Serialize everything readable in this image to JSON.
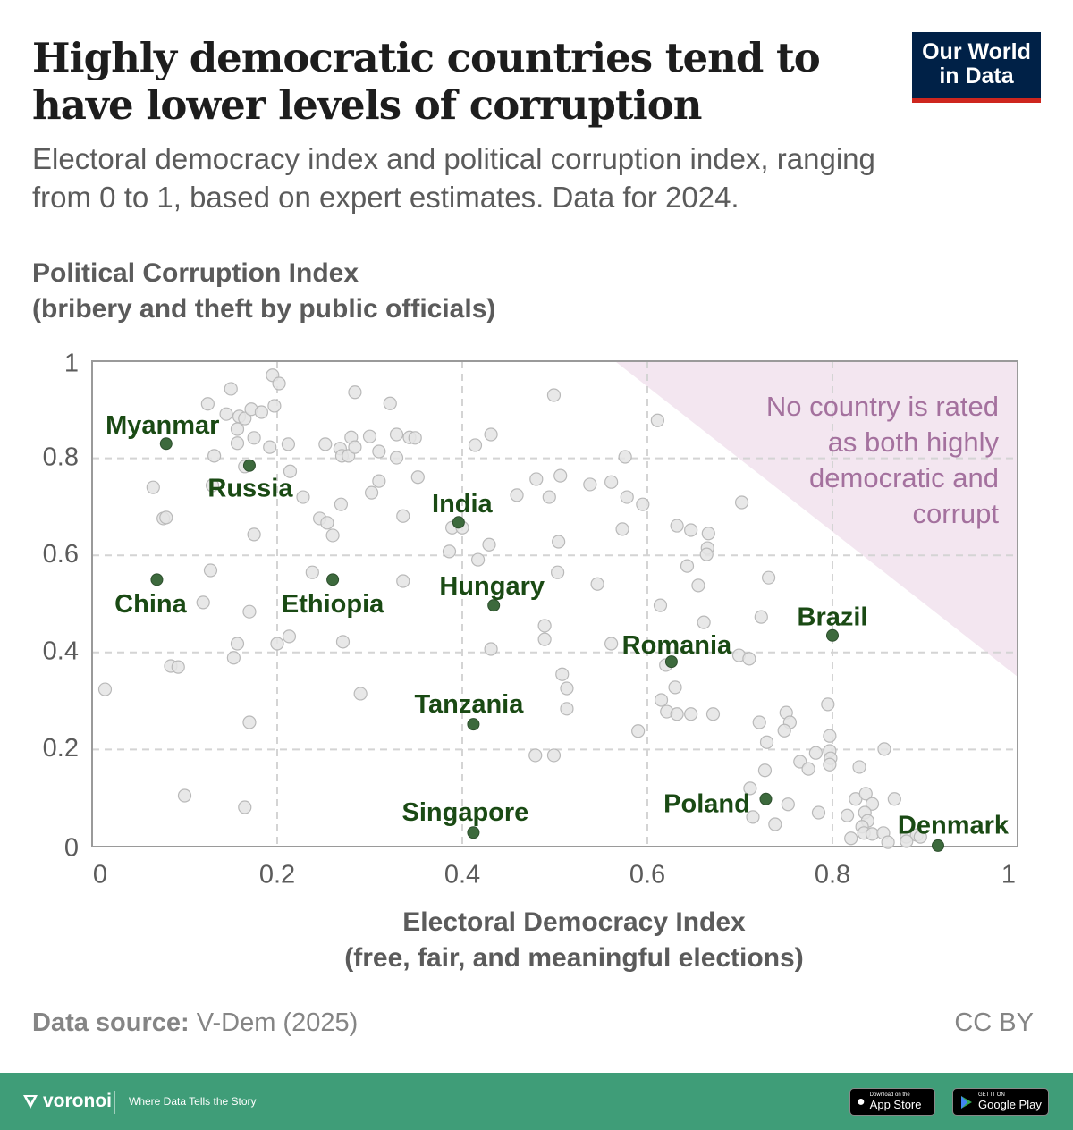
{
  "header": {
    "title": "Highly democratic countries tend to have lower levels of corruption",
    "subtitle": "Electoral democracy index and political corruption index, ranging from 0 to 1, based on expert estimates. Data for 2024.",
    "logo_line1": "Our World",
    "logo_line2": "in Data"
  },
  "chart_data": {
    "type": "scatter",
    "title": "Highly democratic countries tend to have lower levels of corruption",
    "xlabel": "Electoral Democracy Index",
    "xlabel_sub": "(free, fair, and meaningful elections)",
    "ylabel": "Political Corruption Index",
    "ylabel_sub": "(bribery and theft by public officials)",
    "xlim": [
      0,
      1
    ],
    "ylim": [
      0,
      1
    ],
    "x_ticks": [
      "0",
      "0.2",
      "0.4",
      "0.6",
      "0.8",
      "1"
    ],
    "y_ticks": [
      "0",
      "0.2",
      "0.4",
      "0.6",
      "0.8",
      "1"
    ],
    "grid": true,
    "annotation": {
      "lines": [
        "No country is rated",
        "as both highly",
        "democratic and",
        "corrupt"
      ],
      "region_color": "#f3e6f0",
      "text_color": "#a4719e"
    },
    "highlight_color": "#3d6a3d",
    "label_color": "#1a4a14",
    "highlighted": [
      {
        "name": "Myanmar",
        "x": 0.08,
        "y": 0.83
      },
      {
        "name": "Russia",
        "x": 0.17,
        "y": 0.785
      },
      {
        "name": "China",
        "x": 0.07,
        "y": 0.55
      },
      {
        "name": "Ethiopia",
        "x": 0.26,
        "y": 0.55
      },
      {
        "name": "India",
        "x": 0.396,
        "y": 0.668
      },
      {
        "name": "Hungary",
        "x": 0.434,
        "y": 0.497
      },
      {
        "name": "Romania",
        "x": 0.626,
        "y": 0.381
      },
      {
        "name": "Brazil",
        "x": 0.8,
        "y": 0.435
      },
      {
        "name": "Tanzania",
        "x": 0.412,
        "y": 0.252
      },
      {
        "name": "Singapore",
        "x": 0.412,
        "y": 0.029
      },
      {
        "name": "Poland",
        "x": 0.728,
        "y": 0.098
      },
      {
        "name": "Denmark",
        "x": 0.914,
        "y": 0.002
      }
    ],
    "other_points": [
      [
        0.014,
        0.324
      ],
      [
        0.066,
        0.74
      ],
      [
        0.077,
        0.676
      ],
      [
        0.08,
        0.678
      ],
      [
        0.085,
        0.372
      ],
      [
        0.093,
        0.37
      ],
      [
        0.1,
        0.105
      ],
      [
        0.12,
        0.503
      ],
      [
        0.128,
        0.569
      ],
      [
        0.125,
        0.912
      ],
      [
        0.132,
        0.805
      ],
      [
        0.13,
        0.744
      ],
      [
        0.15,
        0.943
      ],
      [
        0.145,
        0.891
      ],
      [
        0.157,
        0.86
      ],
      [
        0.159,
        0.886
      ],
      [
        0.157,
        0.831
      ],
      [
        0.165,
        0.882
      ],
      [
        0.172,
        0.901
      ],
      [
        0.175,
        0.842
      ],
      [
        0.165,
        0.783
      ],
      [
        0.175,
        0.643
      ],
      [
        0.17,
        0.484
      ],
      [
        0.157,
        0.418
      ],
      [
        0.153,
        0.389
      ],
      [
        0.17,
        0.256
      ],
      [
        0.165,
        0.081
      ],
      [
        0.192,
        0.823
      ],
      [
        0.195,
        0.971
      ],
      [
        0.202,
        0.954
      ],
      [
        0.197,
        0.908
      ],
      [
        0.183,
        0.895
      ],
      [
        0.2,
        0.418
      ],
      [
        0.212,
        0.829
      ],
      [
        0.214,
        0.773
      ],
      [
        0.213,
        0.433
      ],
      [
        0.228,
        0.72
      ],
      [
        0.238,
        0.565
      ],
      [
        0.246,
        0.676
      ],
      [
        0.254,
        0.667
      ],
      [
        0.26,
        0.641
      ],
      [
        0.252,
        0.829
      ],
      [
        0.268,
        0.82
      ],
      [
        0.27,
        0.805
      ],
      [
        0.28,
        0.843
      ],
      [
        0.277,
        0.805
      ],
      [
        0.269,
        0.705
      ],
      [
        0.271,
        0.422
      ],
      [
        0.284,
        0.823
      ],
      [
        0.29,
        0.315
      ],
      [
        0.284,
        0.936
      ],
      [
        0.3,
        0.845
      ],
      [
        0.302,
        0.729
      ],
      [
        0.31,
        0.753
      ],
      [
        0.31,
        0.814
      ],
      [
        0.322,
        0.913
      ],
      [
        0.329,
        0.849
      ],
      [
        0.329,
        0.801
      ],
      [
        0.336,
        0.681
      ],
      [
        0.336,
        0.547
      ],
      [
        0.343,
        0.843
      ],
      [
        0.349,
        0.842
      ],
      [
        0.352,
        0.761
      ],
      [
        0.386,
        0.608
      ],
      [
        0.389,
        0.657
      ],
      [
        0.4,
        0.657
      ],
      [
        0.414,
        0.827
      ],
      [
        0.417,
        0.591
      ],
      [
        0.431,
        0.849
      ],
      [
        0.429,
        0.622
      ],
      [
        0.431,
        0.407
      ],
      [
        0.459,
        0.724
      ],
      [
        0.48,
        0.757
      ],
      [
        0.494,
        0.72
      ],
      [
        0.506,
        0.764
      ],
      [
        0.504,
        0.628
      ],
      [
        0.499,
        0.93
      ],
      [
        0.503,
        0.565
      ],
      [
        0.489,
        0.455
      ],
      [
        0.489,
        0.427
      ],
      [
        0.508,
        0.355
      ],
      [
        0.513,
        0.326
      ],
      [
        0.513,
        0.284
      ],
      [
        0.479,
        0.188
      ],
      [
        0.499,
        0.188
      ],
      [
        0.546,
        0.541
      ],
      [
        0.538,
        0.746
      ],
      [
        0.561,
        0.751
      ],
      [
        0.573,
        0.654
      ],
      [
        0.576,
        0.803
      ],
      [
        0.578,
        0.72
      ],
      [
        0.595,
        0.705
      ],
      [
        0.611,
        0.878
      ],
      [
        0.614,
        0.497
      ],
      [
        0.561,
        0.418
      ],
      [
        0.59,
        0.238
      ],
      [
        0.632,
        0.661
      ],
      [
        0.647,
        0.652
      ],
      [
        0.666,
        0.645
      ],
      [
        0.665,
        0.615
      ],
      [
        0.664,
        0.602
      ],
      [
        0.643,
        0.578
      ],
      [
        0.655,
        0.538
      ],
      [
        0.661,
        0.462
      ],
      [
        0.615,
        0.302
      ],
      [
        0.62,
        0.374
      ],
      [
        0.621,
        0.278
      ],
      [
        0.632,
        0.273
      ],
      [
        0.63,
        0.328
      ],
      [
        0.647,
        0.273
      ],
      [
        0.671,
        0.273
      ],
      [
        0.699,
        0.394
      ],
      [
        0.71,
        0.387
      ],
      [
        0.702,
        0.709
      ],
      [
        0.731,
        0.554
      ],
      [
        0.723,
        0.473
      ],
      [
        0.721,
        0.256
      ],
      [
        0.75,
        0.276
      ],
      [
        0.754,
        0.256
      ],
      [
        0.748,
        0.239
      ],
      [
        0.729,
        0.215
      ],
      [
        0.727,
        0.157
      ],
      [
        0.711,
        0.12
      ],
      [
        0.714,
        0.061
      ],
      [
        0.738,
        0.046
      ],
      [
        0.752,
        0.087
      ],
      [
        0.785,
        0.07
      ],
      [
        0.765,
        0.175
      ],
      [
        0.774,
        0.16
      ],
      [
        0.782,
        0.193
      ],
      [
        0.795,
        0.293
      ],
      [
        0.797,
        0.228
      ],
      [
        0.797,
        0.197
      ],
      [
        0.798,
        0.182
      ],
      [
        0.797,
        0.169
      ],
      [
        0.829,
        0.164
      ],
      [
        0.856,
        0.201
      ],
      [
        0.825,
        0.098
      ],
      [
        0.836,
        0.109
      ],
      [
        0.843,
        0.088
      ],
      [
        0.835,
        0.07
      ],
      [
        0.838,
        0.053
      ],
      [
        0.816,
        0.064
      ],
      [
        0.832,
        0.041
      ],
      [
        0.834,
        0.028
      ],
      [
        0.82,
        0.017
      ],
      [
        0.843,
        0.026
      ],
      [
        0.855,
        0.028
      ],
      [
        0.86,
        0.009
      ],
      [
        0.867,
        0.098
      ],
      [
        0.88,
        0.02
      ],
      [
        0.891,
        0.024
      ],
      [
        0.895,
        0.02
      ],
      [
        0.88,
        0.011
      ]
    ]
  },
  "footer": {
    "source_label": "Data source:",
    "source_value": "V-Dem (2025)",
    "license": "CC BY"
  },
  "branding": {
    "name": "voronoi",
    "tagline": "Where Data Tells the Story",
    "app_store_small": "Download on the",
    "app_store": "App Store",
    "google_play_small": "GET IT ON",
    "google_play": "Google Play"
  }
}
